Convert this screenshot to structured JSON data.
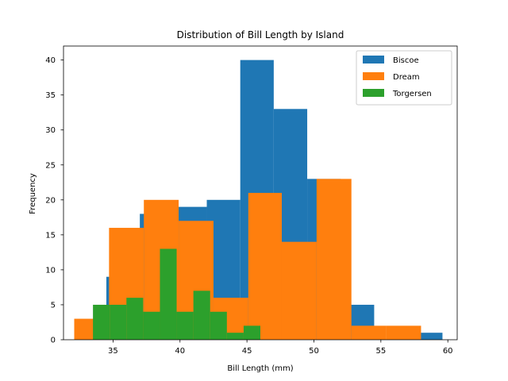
{
  "chart_data": {
    "type": "bar",
    "title": "Distribution of Bill Length by Island",
    "xlabel": "Bill Length (mm)",
    "ylabel": "Frequency",
    "xlim": [
      31.3,
      60.7
    ],
    "ylim": [
      0,
      42
    ],
    "xticks": [
      35,
      40,
      45,
      50,
      55,
      60
    ],
    "yticks": [
      0,
      5,
      10,
      15,
      20,
      25,
      30,
      35,
      40
    ],
    "grid": false,
    "legend_position": "top-right",
    "series": [
      {
        "name": "Biscoe",
        "color": "#1f77b4",
        "bins": [
          {
            "x0": 34.5,
            "x1": 37.0,
            "count": 9
          },
          {
            "x0": 37.0,
            "x1": 39.5,
            "count": 18
          },
          {
            "x0": 39.5,
            "x1": 42.0,
            "count": 19
          },
          {
            "x0": 42.0,
            "x1": 44.5,
            "count": 20
          },
          {
            "x0": 44.5,
            "x1": 47.0,
            "count": 40
          },
          {
            "x0": 47.0,
            "x1": 49.5,
            "count": 33
          },
          {
            "x0": 49.5,
            "x1": 52.0,
            "count": 23
          },
          {
            "x0": 52.0,
            "x1": 54.5,
            "count": 5
          },
          {
            "x0": 54.5,
            "x1": 57.0,
            "count": 0
          },
          {
            "x0": 57.0,
            "x1": 59.6,
            "count": 1
          }
        ]
      },
      {
        "name": "Dream",
        "color": "#ff7f0e",
        "bins": [
          {
            "x0": 32.1,
            "x1": 34.7,
            "count": 3
          },
          {
            "x0": 34.7,
            "x1": 37.3,
            "count": 16
          },
          {
            "x0": 37.3,
            "x1": 39.9,
            "count": 20
          },
          {
            "x0": 39.9,
            "x1": 42.5,
            "count": 17
          },
          {
            "x0": 42.5,
            "x1": 45.1,
            "count": 6
          },
          {
            "x0": 45.1,
            "x1": 47.6,
            "count": 21
          },
          {
            "x0": 47.6,
            "x1": 50.2,
            "count": 14
          },
          {
            "x0": 50.2,
            "x1": 52.8,
            "count": 23
          },
          {
            "x0": 52.8,
            "x1": 55.4,
            "count": 2
          },
          {
            "x0": 55.4,
            "x1": 58.0,
            "count": 2
          }
        ]
      },
      {
        "name": "Torgersen",
        "color": "#2ca02c",
        "bins": [
          {
            "x0": 33.5,
            "x1": 34.75,
            "count": 5
          },
          {
            "x0": 34.75,
            "x1": 36.0,
            "count": 5
          },
          {
            "x0": 36.0,
            "x1": 37.25,
            "count": 6
          },
          {
            "x0": 37.25,
            "x1": 38.5,
            "count": 4
          },
          {
            "x0": 38.5,
            "x1": 39.75,
            "count": 13
          },
          {
            "x0": 39.75,
            "x1": 41.0,
            "count": 4
          },
          {
            "x0": 41.0,
            "x1": 42.25,
            "count": 7
          },
          {
            "x0": 42.25,
            "x1": 43.5,
            "count": 4
          },
          {
            "x0": 43.5,
            "x1": 44.75,
            "count": 1
          },
          {
            "x0": 44.75,
            "x1": 46.0,
            "count": 2
          }
        ]
      }
    ]
  }
}
